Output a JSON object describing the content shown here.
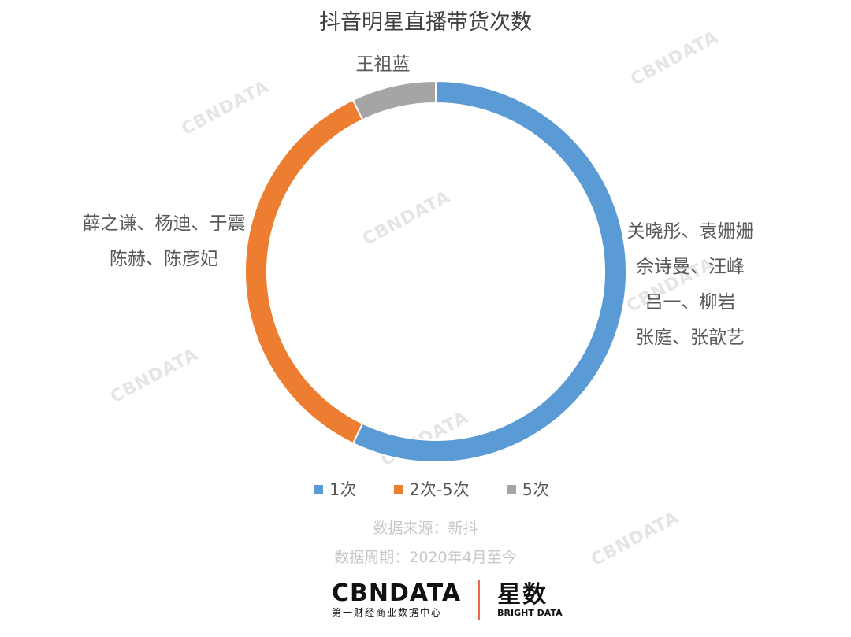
{
  "chart_data": {
    "type": "pie",
    "style": "donut",
    "title": "抖音明星直播带货次数",
    "categories": [
      "1次",
      "2次-5次",
      "5次"
    ],
    "values": [
      8,
      5,
      1
    ],
    "colors": [
      "#5b9bd5",
      "#ed7d31",
      "#a5a5a5"
    ],
    "slice_labels": [
      [
        "关晓彤、袁姗姗",
        "佘诗曼、汪峰",
        "吕一、柳岩",
        "张庭、张歆艺"
      ],
      [
        "薛之谦、杨迪、于震",
        "陈赫、陈彦妃"
      ],
      [
        "王祖蓝"
      ]
    ],
    "legend_position": "bottom"
  },
  "notes": {
    "source": "数据来源：新抖",
    "period": "数据周期：2020年4月至今"
  },
  "watermark": "CBNDATA",
  "logo": {
    "cbn": "CBNDATA",
    "cbn_sub": "第一财经商业数据中心",
    "xs": "星数",
    "xs_sub": "BRIGHT DATA"
  }
}
